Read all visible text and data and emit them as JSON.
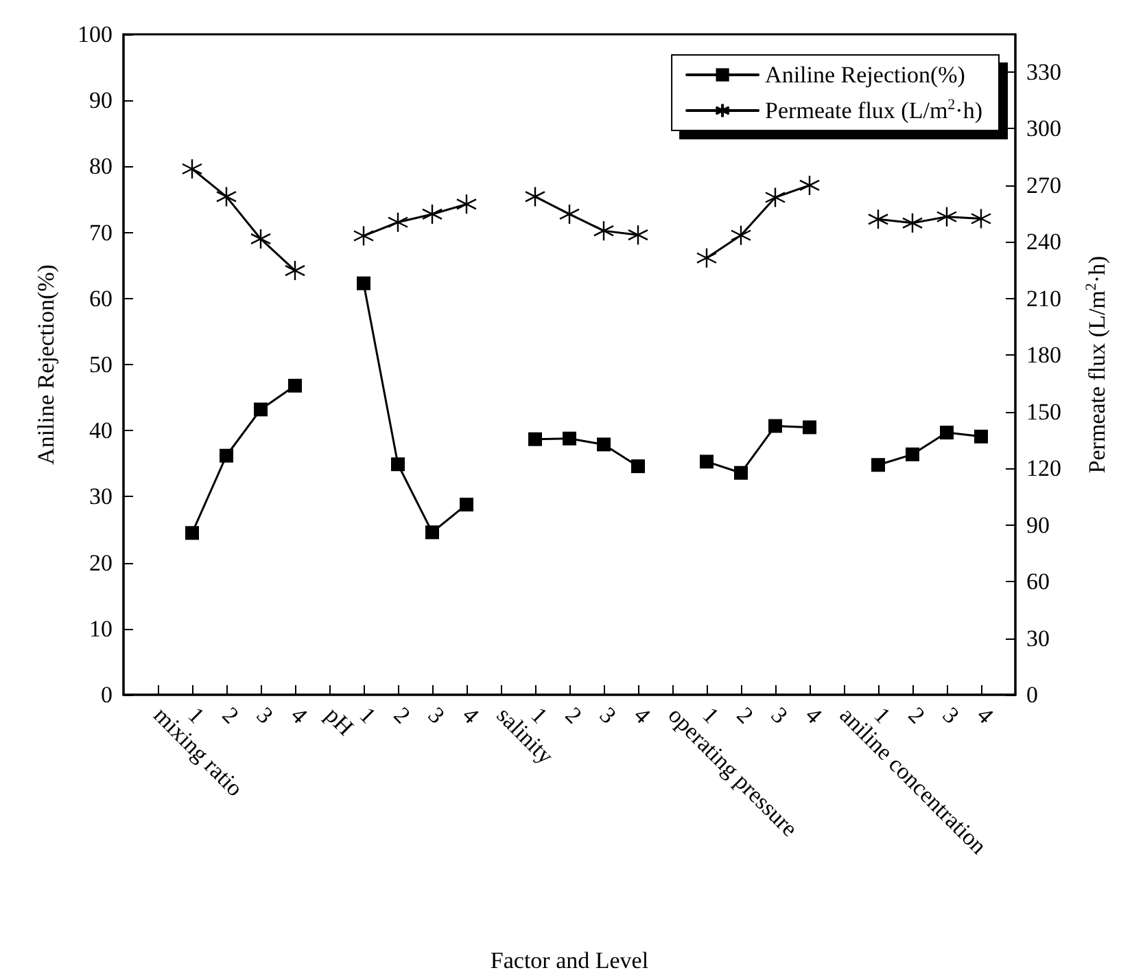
{
  "chart_data": {
    "type": "line",
    "xlabel": "Factor and Level",
    "ylabel": "Aniline Rejection(%)",
    "y2label": "Permeate flux (L/m$^{2}$·h)",
    "categories": [
      "mixing ratio",
      "1",
      "2",
      "3",
      "4",
      "pH",
      "1",
      "2",
      "3",
      "4",
      "salinity",
      "1",
      "2",
      "3",
      "4",
      "operating pressure",
      "1",
      "2",
      "3",
      "4",
      "aniline concentration",
      "1",
      "2",
      "3",
      "4"
    ],
    "series": [
      {
        "name": "Aniline Rejection(%)",
        "color": "#000000",
        "marker": "square",
        "values": [
          null,
          24.5,
          36.2,
          43.2,
          46.8,
          null,
          62.3,
          34.9,
          24.6,
          28.8,
          null,
          38.7,
          38.8,
          37.9,
          34.6,
          null,
          35.3,
          33.6,
          40.7,
          40.5,
          null,
          34.8,
          36.4,
          39.7,
          39.1
        ]
      },
      {
        "name": "Permeate flux (L/m$^{2}$·h)",
        "color": "#000000",
        "marker": "cross",
        "axis": "y2",
        "values": [
          null,
          278.7,
          264,
          241.6,
          224.8,
          null,
          243.2,
          250.4,
          254.7,
          260,
          null,
          264,
          254.7,
          245.9,
          243.7,
          null,
          231.5,
          243.5,
          263.6,
          270,
          null,
          252,
          250,
          253.3,
          252.3
        ]
      }
    ],
    "ylim": [
      0,
      100
    ],
    "yticks": [
      0,
      10,
      20,
      30,
      40,
      50,
      60,
      70,
      80,
      90,
      100
    ],
    "y2lim": [
      0,
      350
    ],
    "y2ticks": [
      0,
      30,
      60,
      90,
      120,
      150,
      180,
      210,
      240,
      270,
      300,
      330
    ],
    "legend": "top right",
    "grid": false,
    "line_style": "solid"
  }
}
